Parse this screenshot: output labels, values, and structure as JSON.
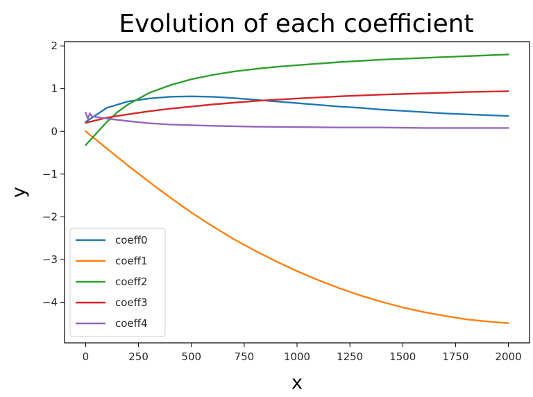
{
  "chart_data": {
    "type": "line",
    "title": "Evolution of each coefficient",
    "xlabel": "x",
    "ylabel": "y",
    "xlim": [
      -100,
      2100
    ],
    "ylim": [
      -4.95,
      2.1
    ],
    "xticks": [
      0,
      250,
      500,
      750,
      1000,
      1250,
      1500,
      1750,
      2000
    ],
    "yticks": [
      2,
      1,
      0,
      -1,
      -2,
      -3,
      -4
    ],
    "ytick_labels": [
      "2",
      "1",
      "0",
      "−1",
      "−2",
      "−3",
      "−4"
    ],
    "grid": false,
    "legend_position": "lower-left",
    "series": [
      {
        "name": "coeff0",
        "color": "#1f77b4",
        "x": [
          0,
          100,
          200,
          300,
          400,
          500,
          600,
          700,
          800,
          900,
          1000,
          1100,
          1200,
          1300,
          1400,
          1500,
          1600,
          1700,
          1800,
          1900,
          2000
        ],
        "values": [
          0.22,
          0.55,
          0.7,
          0.77,
          0.81,
          0.82,
          0.81,
          0.78,
          0.74,
          0.7,
          0.66,
          0.62,
          0.58,
          0.55,
          0.51,
          0.48,
          0.45,
          0.42,
          0.4,
          0.38,
          0.36
        ]
      },
      {
        "name": "coeff1",
        "color": "#ff7f0e",
        "x": [
          0,
          100,
          200,
          300,
          400,
          500,
          600,
          700,
          800,
          900,
          1000,
          1100,
          1200,
          1300,
          1400,
          1500,
          1600,
          1700,
          1800,
          1900,
          2000
        ],
        "values": [
          0.0,
          -0.4,
          -0.8,
          -1.18,
          -1.55,
          -1.9,
          -2.22,
          -2.52,
          -2.79,
          -3.04,
          -3.27,
          -3.48,
          -3.67,
          -3.84,
          -3.99,
          -4.12,
          -4.23,
          -4.32,
          -4.4,
          -4.45,
          -4.49
        ]
      },
      {
        "name": "coeff2",
        "color": "#2ca02c",
        "x": [
          0,
          50,
          100,
          150,
          200,
          300,
          400,
          500,
          600,
          700,
          800,
          900,
          1000,
          1200,
          1400,
          1600,
          1800,
          2000
        ],
        "values": [
          -0.32,
          -0.05,
          0.22,
          0.45,
          0.63,
          0.9,
          1.08,
          1.22,
          1.32,
          1.4,
          1.46,
          1.51,
          1.55,
          1.62,
          1.68,
          1.72,
          1.76,
          1.8
        ]
      },
      {
        "name": "coeff3",
        "color": "#d62728",
        "x": [
          0,
          100,
          200,
          300,
          400,
          500,
          600,
          700,
          800,
          900,
          1000,
          1200,
          1400,
          1600,
          1800,
          2000
        ],
        "values": [
          0.2,
          0.32,
          0.4,
          0.47,
          0.53,
          0.58,
          0.63,
          0.67,
          0.71,
          0.74,
          0.77,
          0.82,
          0.86,
          0.89,
          0.92,
          0.94
        ]
      },
      {
        "name": "coeff4",
        "color": "#9467bd",
        "x": [
          0,
          10,
          20,
          30,
          100,
          200,
          300,
          400,
          600,
          800,
          1000,
          1200,
          1400,
          1600,
          1800,
          2000
        ],
        "values": [
          0.44,
          0.3,
          0.42,
          0.35,
          0.3,
          0.24,
          0.19,
          0.16,
          0.13,
          0.11,
          0.1,
          0.09,
          0.09,
          0.08,
          0.08,
          0.08
        ]
      }
    ]
  }
}
